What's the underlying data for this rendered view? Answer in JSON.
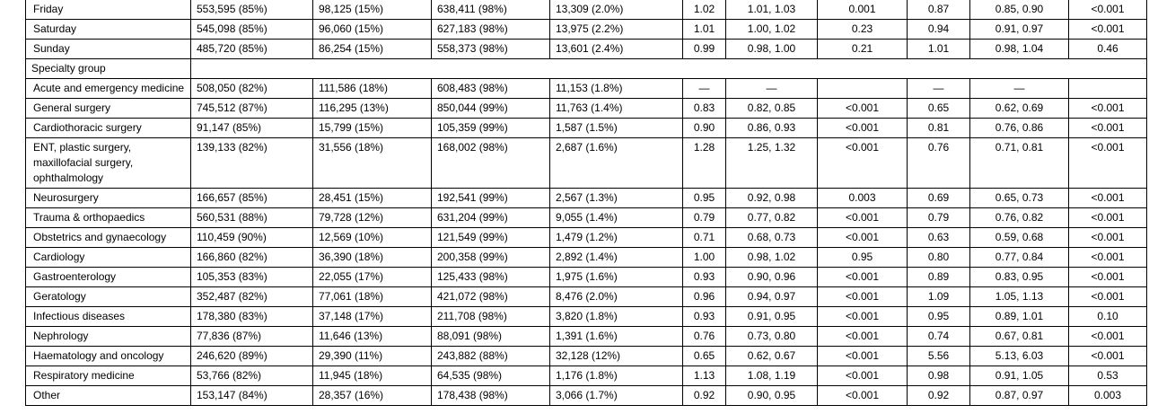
{
  "table": {
    "rows": [
      [
        "Friday",
        "553,595 (85%)",
        "98,125 (15%)",
        "638,411 (98%)",
        "13,309 (2.0%)",
        "1.02",
        "1.01, 1.03",
        "0.001",
        "0.87",
        "0.85, 0.90",
        "<0.001"
      ],
      [
        "Saturday",
        "545,098 (85%)",
        "96,060 (15%)",
        "627,183 (98%)",
        "13,975 (2.2%)",
        "1.01",
        "1.00, 1.02",
        "0.23",
        "0.94",
        "0.91, 0.97",
        "<0.001"
      ],
      [
        "Sunday",
        "485,720 (85%)",
        "86,254 (15%)",
        "558,373 (98%)",
        "13,601 (2.4%)",
        "0.99",
        "0.98, 1.00",
        "0.21",
        "1.01",
        "0.98, 1.04",
        "0.46"
      ],
      [
        "Specialty group"
      ],
      [
        "Acute and emergency medicine",
        "508,050 (82%)",
        "111,586 (18%)",
        "608,483 (98%)",
        "11,153 (1.8%)",
        "—",
        "—",
        null,
        "—",
        "—",
        null
      ],
      [
        "General surgery",
        "745,512 (87%)",
        "116,295 (13%)",
        "850,044 (99%)",
        "11,763 (1.4%)",
        "0.83",
        "0.82, 0.85",
        "<0.001",
        "0.65",
        "0.62, 0.69",
        "<0.001"
      ],
      [
        "Cardiothoracic surgery",
        "91,147 (85%)",
        "15,799 (15%)",
        "105,359 (99%)",
        "1,587 (1.5%)",
        "0.90",
        "0.86, 0.93",
        "<0.001",
        "0.81",
        "0.76, 0.86",
        "<0.001"
      ],
      [
        "ENT, plastic surgery, maxillofacial surgery, ophthalmology",
        "139,133 (82%)",
        "31,556 (18%)",
        "168,002 (98%)",
        "2,687 (1.6%)",
        "1.28",
        "1.25, 1.32",
        "<0.001",
        "0.76",
        "0.71, 0.81",
        "<0.001"
      ],
      [
        "Neurosurgery",
        "166,657 (85%)",
        "28,451 (15%)",
        "192,541 (99%)",
        "2,567 (1.3%)",
        "0.95",
        "0.92, 0.98",
        "0.003",
        "0.69",
        "0.65, 0.73",
        "<0.001"
      ],
      [
        "Trauma & orthopaedics",
        "560,531 (88%)",
        "79,728 (12%)",
        "631,204 (99%)",
        "9,055 (1.4%)",
        "0.79",
        "0.77, 0.82",
        "<0.001",
        "0.79",
        "0.76, 0.82",
        "<0.001"
      ],
      [
        "Obstetrics and gynaecology",
        "110,459 (90%)",
        "12,569 (10%)",
        "121,549 (99%)",
        "1,479 (1.2%)",
        "0.71",
        "0.68, 0.73",
        "<0.001",
        "0.63",
        "0.59, 0.68",
        "<0.001"
      ],
      [
        "Cardiology",
        "166,860 (82%)",
        "36,390 (18%)",
        "200,358 (99%)",
        "2,892 (1.4%)",
        "1.00",
        "0.98, 1.02",
        "0.95",
        "0.80",
        "0.77, 0.84",
        "<0.001"
      ],
      [
        "Gastroenterology",
        "105,353 (83%)",
        "22,055 (17%)",
        "125,433 (98%)",
        "1,975 (1.6%)",
        "0.93",
        "0.90, 0.96",
        "<0.001",
        "0.89",
        "0.83, 0.95",
        "<0.001"
      ],
      [
        "Geratology",
        "352,487 (82%)",
        "77,061 (18%)",
        "421,072 (98%)",
        "8,476 (2.0%)",
        "0.96",
        "0.94, 0.97",
        "<0.001",
        "1.09",
        "1.05, 1.13",
        "<0.001"
      ],
      [
        "Infectious diseases",
        "178,380 (83%)",
        "37,148 (17%)",
        "211,708 (98%)",
        "3,820 (1.8%)",
        "0.93",
        "0.91, 0.95",
        "<0.001",
        "0.95",
        "0.89, 1.01",
        "0.10"
      ],
      [
        "Nephrology",
        "77,836 (87%)",
        "11,646 (13%)",
        "88,091 (98%)",
        "1,391 (1.6%)",
        "0.76",
        "0.73, 0.80",
        "<0.001",
        "0.74",
        "0.67, 0.81",
        "<0.001"
      ],
      [
        "Haematology and oncology",
        "246,620 (89%)",
        "29,390 (11%)",
        "243,882 (88%)",
        "32,128 (12%)",
        "0.65",
        "0.62, 0.67",
        "<0.001",
        "5.56",
        "5.13, 6.03",
        "<0.001"
      ],
      [
        "Respiratory medicine",
        "53,766 (82%)",
        "11,945 (18%)",
        "64,535 (98%)",
        "1,176 (1.8%)",
        "1.13",
        "1.08, 1.19",
        "<0.001",
        "0.98",
        "0.91, 1.05",
        "0.53"
      ],
      [
        "Other",
        "153,147 (84%)",
        "28,357 (16%)",
        "178,438 (98%)",
        "3,066 (1.7%)",
        "0.92",
        "0.90, 0.95",
        "<0.001",
        "0.92",
        "0.87, 0.97",
        "0.003"
      ]
    ]
  }
}
